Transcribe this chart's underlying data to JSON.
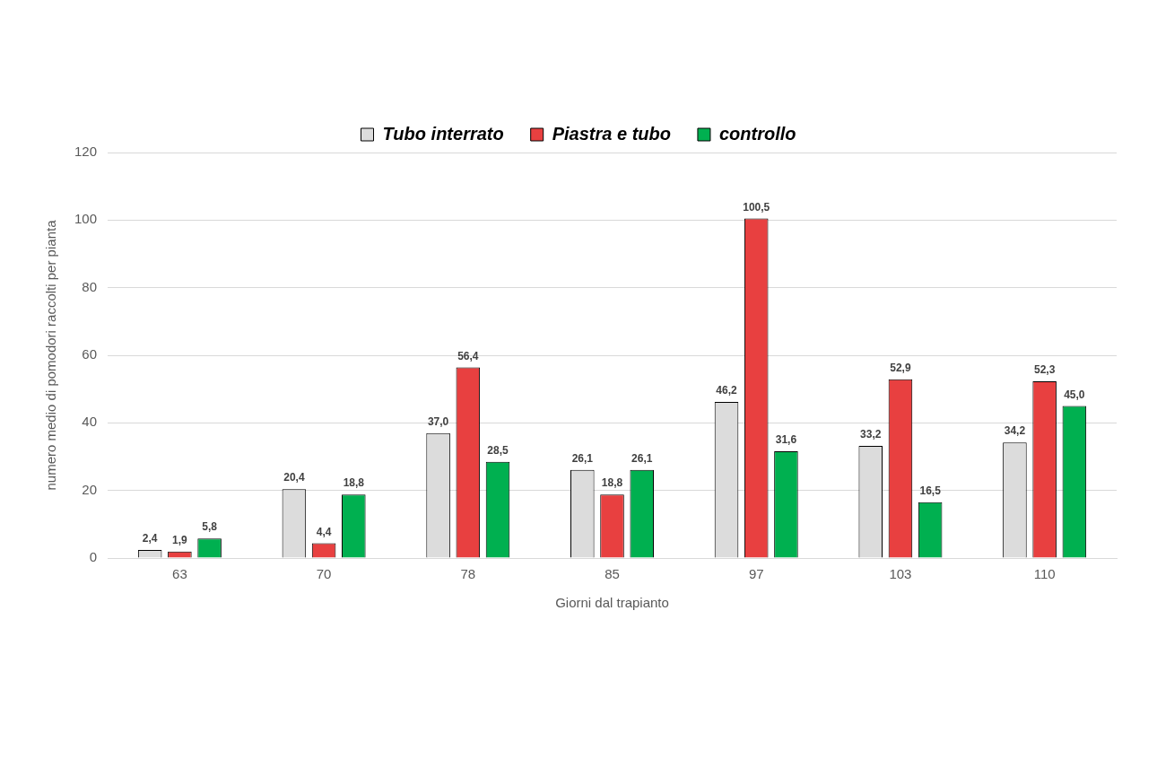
{
  "chart_data": {
    "type": "bar",
    "xlabel": "Giorni dal trapianto",
    "ylabel": "numero medio di pomodori raccolti per pianta",
    "categories": [
      "63",
      "70",
      "78",
      "85",
      "97",
      "103",
      "110"
    ],
    "series": [
      {
        "name": "Tubo interrato",
        "color": "#dcdcdc",
        "values": [
          2.4,
          20.4,
          37.0,
          26.1,
          46.2,
          33.2,
          34.2
        ],
        "value_labels": [
          "2,4",
          "20,4",
          "37,0",
          "26,1",
          "46,2",
          "33,2",
          "34,2"
        ]
      },
      {
        "name": "Piastra e tubo",
        "color": "#e84040",
        "values": [
          1.9,
          4.4,
          56.4,
          18.8,
          100.5,
          52.9,
          52.3
        ],
        "value_labels": [
          "1,9",
          "4,4",
          "56,4",
          "18,8",
          "100,5",
          "52,9",
          "52,3"
        ]
      },
      {
        "name": "controllo",
        "color": "#00b050",
        "values": [
          5.8,
          18.8,
          28.5,
          26.1,
          31.6,
          16.5,
          45.0
        ],
        "value_labels": [
          "5,8",
          "18,8",
          "28,5",
          "26,1",
          "31,6",
          "16,5",
          "45,0"
        ]
      }
    ],
    "ylim": [
      0,
      120
    ],
    "yticks": [
      0,
      20,
      40,
      60,
      80,
      100,
      120
    ],
    "grid": "y",
    "legend": "top"
  }
}
